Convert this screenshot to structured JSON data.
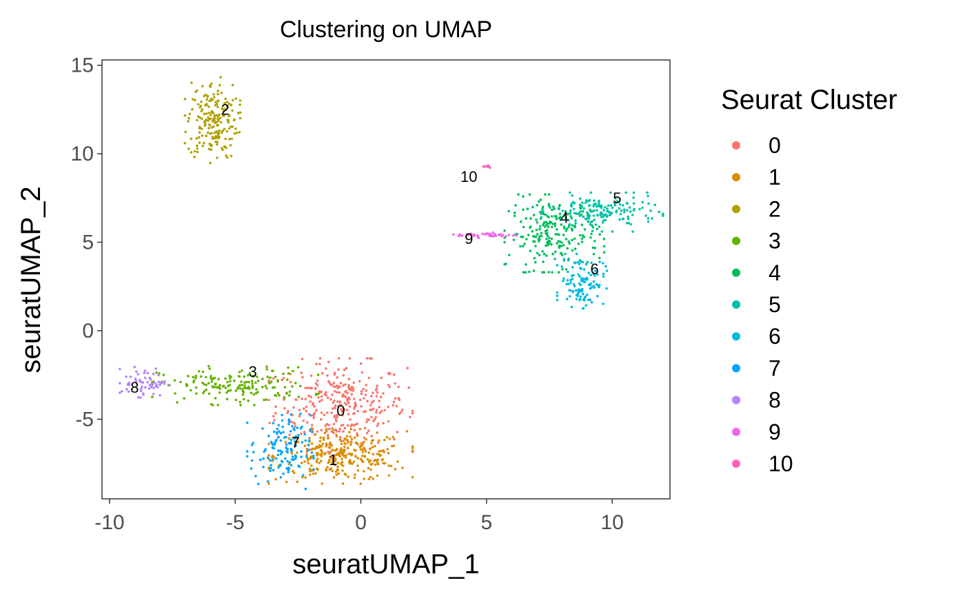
{
  "chart_data": {
    "type": "scatter",
    "title": "Clustering on UMAP",
    "xlabel": "seuratUMAP_1",
    "ylabel": "seuratUMAP_2",
    "xlim": [
      -10.3,
      12.3
    ],
    "ylim": [
      -9.5,
      15.3
    ],
    "xticks": [
      -10,
      -5,
      0,
      5,
      10
    ],
    "yticks": [
      -5,
      0,
      5,
      10,
      15
    ],
    "xtick_labels": [
      "-10",
      "-5",
      "0",
      "5",
      "10"
    ],
    "ytick_labels": [
      "-5",
      "0",
      "5",
      "10",
      "15"
    ],
    "grid": false,
    "legend": {
      "title": "Seurat Cluster",
      "position": "right",
      "entries": [
        "0",
        "1",
        "2",
        "3",
        "4",
        "5",
        "6",
        "7",
        "8",
        "9",
        "10"
      ]
    },
    "series": [
      {
        "name": "0",
        "color": "#F8766D",
        "center": [
          -0.8,
          -4.2
        ],
        "spread": [
          1.3,
          1.2
        ],
        "n": 320,
        "label": "0",
        "label_pos": [
          -0.8,
          -4.8
        ]
      },
      {
        "name": "1",
        "color": "#DB8E00",
        "center": [
          -0.8,
          -7.1
        ],
        "spread": [
          1.3,
          0.7
        ],
        "n": 300,
        "label": "1",
        "label_pos": [
          -1.1,
          -7.6
        ]
      },
      {
        "name": "2",
        "color": "#AEA200",
        "center": [
          -5.9,
          11.9
        ],
        "spread": [
          0.5,
          1.1
        ],
        "n": 200,
        "label": "2",
        "label_pos": [
          -5.4,
          12.2
        ]
      },
      {
        "name": "3",
        "color": "#64B200",
        "center": [
          -5.0,
          -3.1
        ],
        "spread": [
          1.5,
          0.5
        ],
        "n": 170,
        "label": "3",
        "label_pos": [
          -4.3,
          -2.6
        ]
      },
      {
        "name": "4",
        "color": "#00BD5C",
        "center": [
          7.7,
          5.5
        ],
        "spread": [
          0.9,
          1.0
        ],
        "n": 220,
        "label": "4",
        "label_pos": [
          8.1,
          6.1
        ]
      },
      {
        "name": "5",
        "color": "#00C1A7",
        "center": [
          9.6,
          6.7
        ],
        "spread": [
          1.1,
          0.5
        ],
        "n": 160,
        "label": "5",
        "label_pos": [
          10.2,
          7.2
        ]
      },
      {
        "name": "6",
        "color": "#00BADE",
        "center": [
          8.8,
          2.8
        ],
        "spread": [
          0.45,
          0.7
        ],
        "n": 110,
        "label": "6",
        "label_pos": [
          9.3,
          3.2
        ]
      },
      {
        "name": "7",
        "color": "#00A6FF",
        "center": [
          -3.2,
          -6.8
        ],
        "spread": [
          0.6,
          1.0
        ],
        "n": 130,
        "label": "7",
        "label_pos": [
          -2.6,
          -6.6
        ]
      },
      {
        "name": "8",
        "color": "#B385FF",
        "center": [
          -8.6,
          -2.9
        ],
        "spread": [
          0.45,
          0.4
        ],
        "n": 60,
        "label": "8",
        "label_pos": [
          -9.0,
          -3.5
        ]
      },
      {
        "name": "9",
        "color": "#EF67EB",
        "center": [
          5.0,
          5.4
        ],
        "spread": [
          0.6,
          0.07
        ],
        "n": 40,
        "label": "9",
        "label_pos": [
          4.3,
          4.9
        ]
      },
      {
        "name": "10",
        "color": "#FF63B6",
        "center": [
          5.0,
          9.3
        ],
        "spread": [
          0.12,
          0.05
        ],
        "n": 10,
        "label": "10",
        "label_pos": [
          4.3,
          8.4
        ]
      }
    ]
  }
}
